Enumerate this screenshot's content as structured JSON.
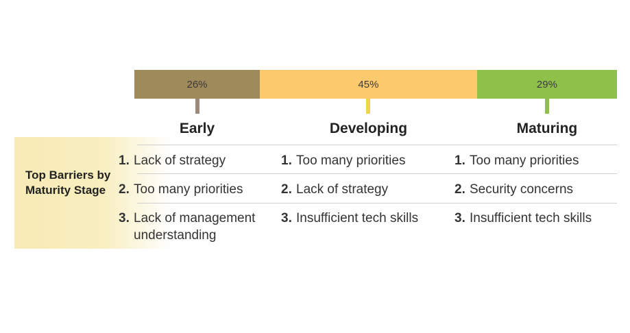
{
  "chart_data": {
    "type": "bar",
    "orientation": "horizontal-stacked",
    "categories": [
      "Early",
      "Developing",
      "Maturing"
    ],
    "values": [
      26,
      45,
      29
    ],
    "value_labels": [
      "26%",
      "45%",
      "29%"
    ],
    "colors": [
      "#9e8a5a",
      "#fcc96d",
      "#8fc14a"
    ],
    "tick_colors": [
      "#9e8a7a",
      "#f0d54a",
      "#8fc14a"
    ]
  },
  "side_label": "Top Barriers by Maturity Stage",
  "columns": [
    {
      "stage": "Early",
      "items": [
        {
          "num": "1.",
          "text": "Lack of strategy"
        },
        {
          "num": "2.",
          "text": "Too many priorities"
        },
        {
          "num": "3.",
          "text": "Lack of management understanding"
        }
      ]
    },
    {
      "stage": "Developing",
      "items": [
        {
          "num": "1.",
          "text": "Too many priorities"
        },
        {
          "num": "2.",
          "text": "Lack of strategy"
        },
        {
          "num": "3.",
          "text": "Insufficient tech skills"
        }
      ]
    },
    {
      "stage": "Maturing",
      "items": [
        {
          "num": "1.",
          "text": "Too many priorities"
        },
        {
          "num": "2.",
          "text": "Security concerns"
        },
        {
          "num": "3.",
          "text": "Insufficient tech skills"
        }
      ]
    }
  ]
}
